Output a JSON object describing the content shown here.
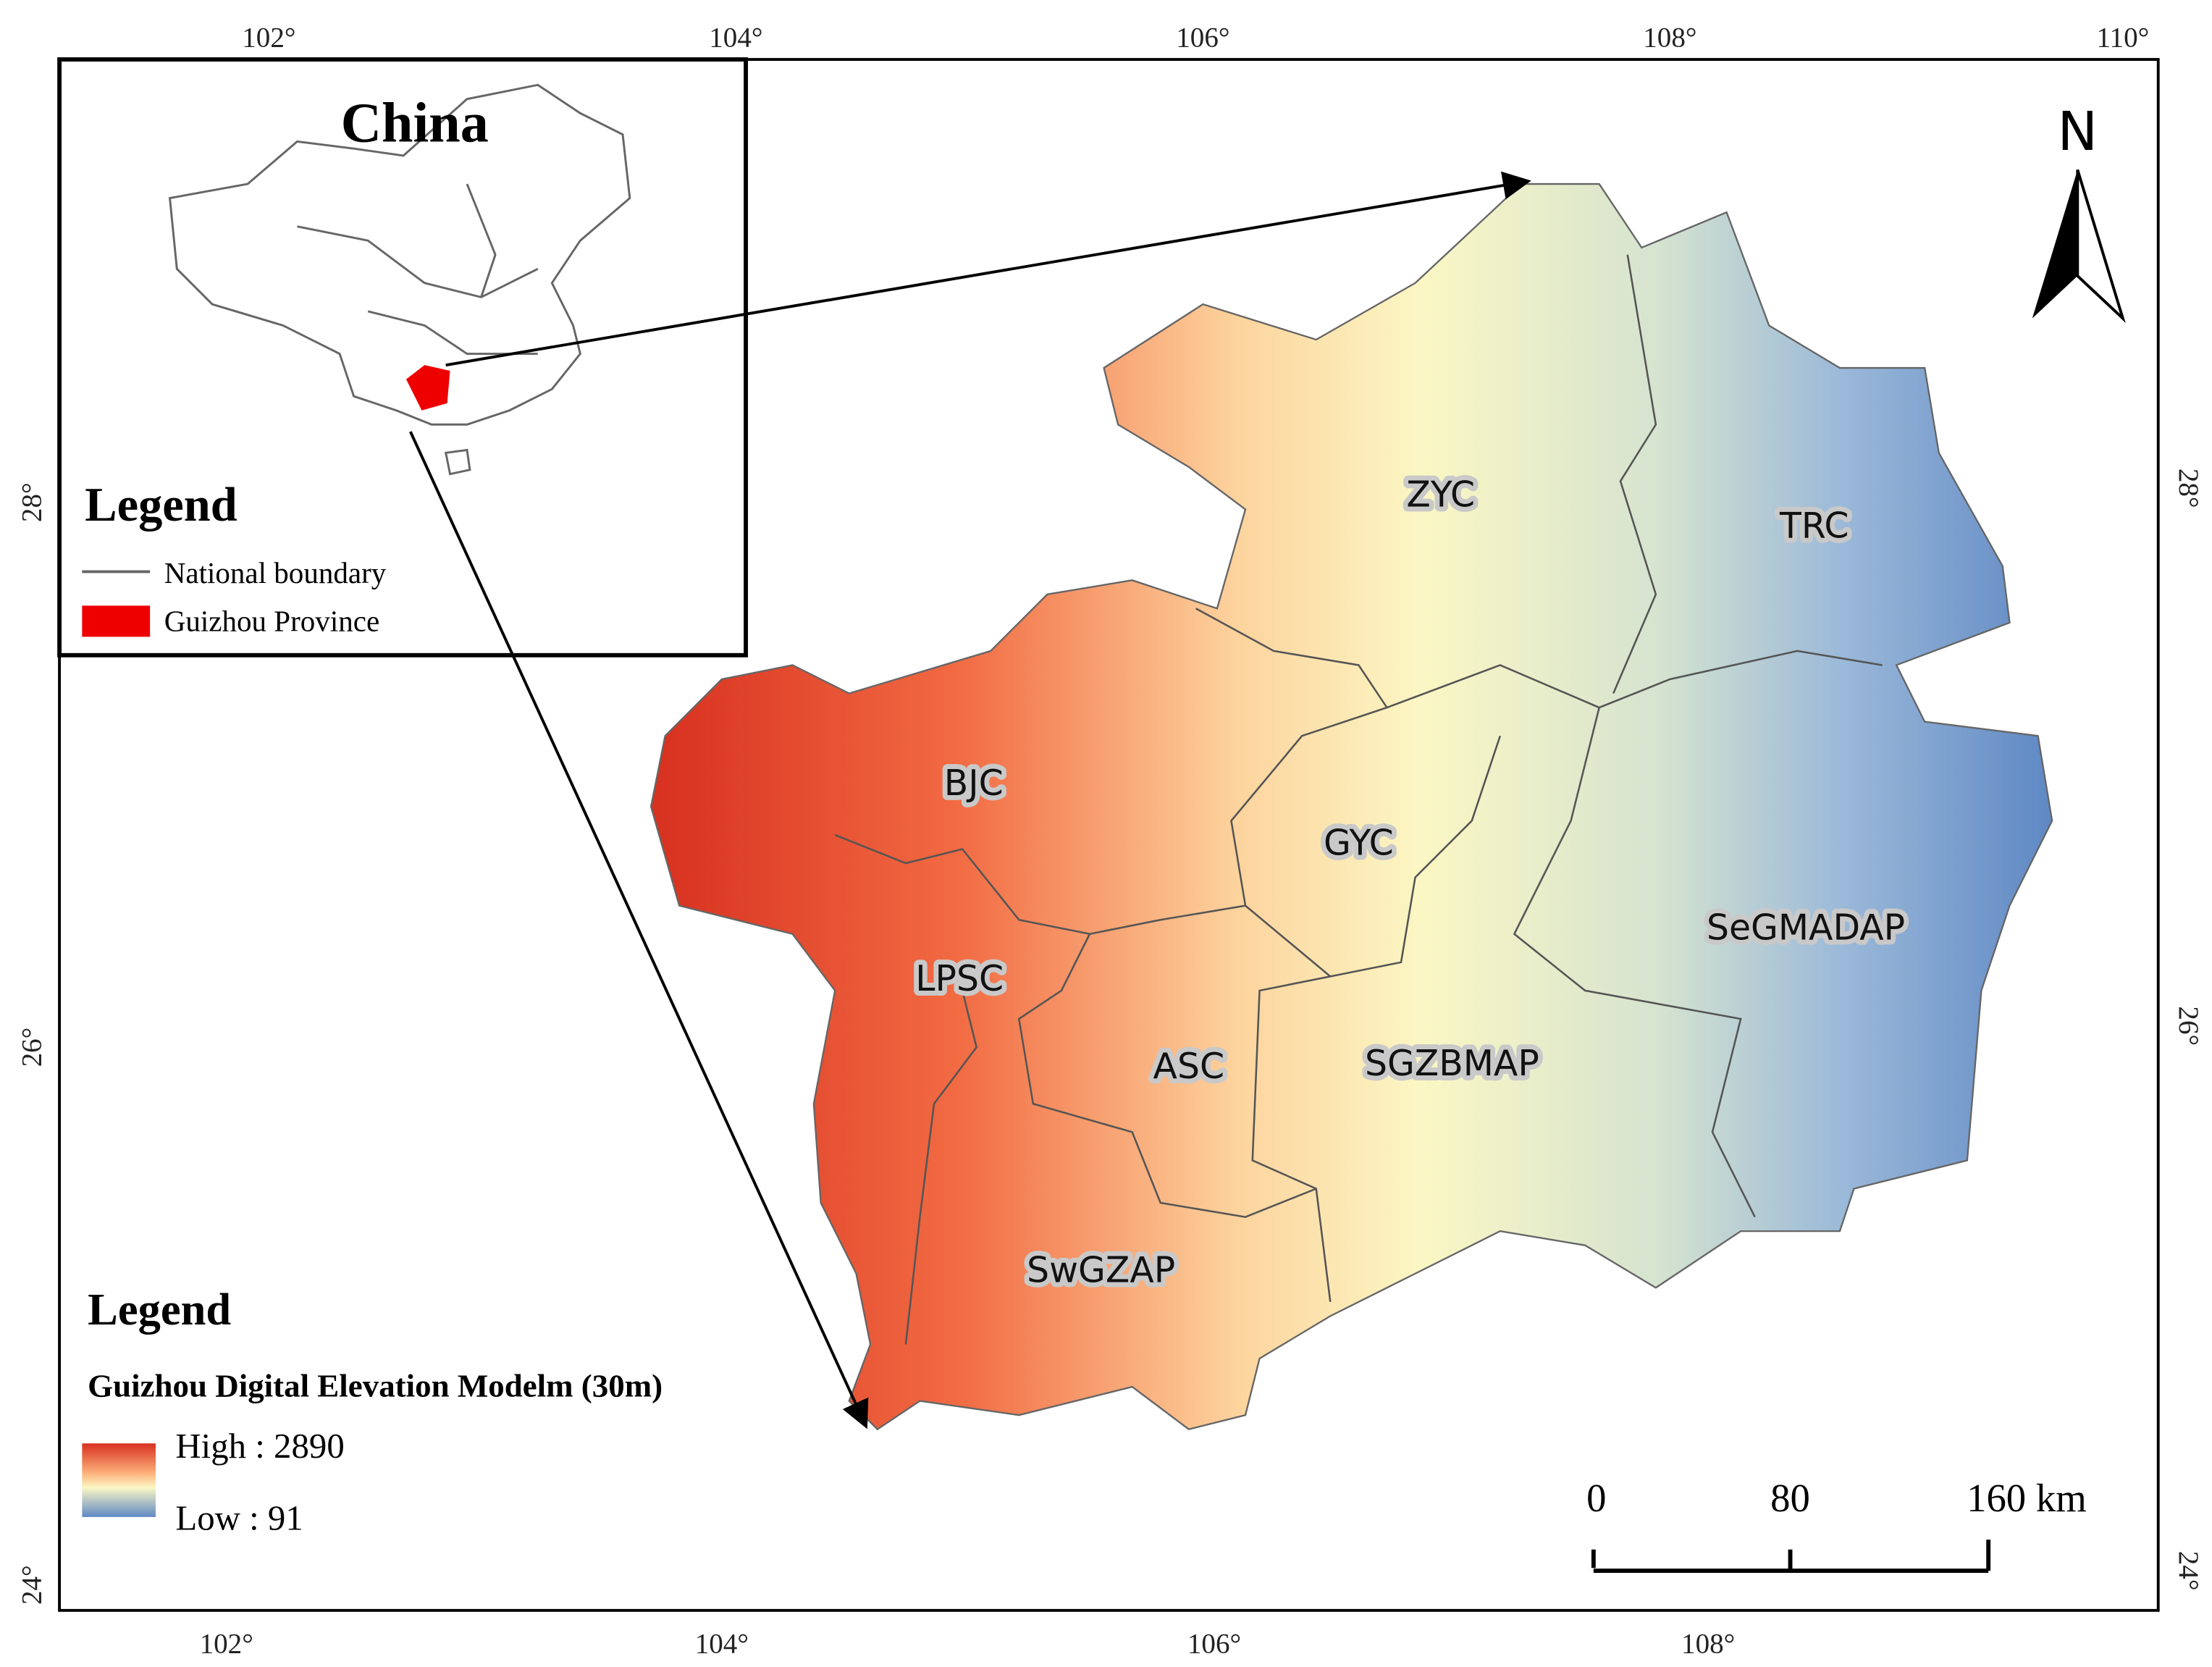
{
  "axes": {
    "top": [
      "102°",
      "104°",
      "106°",
      "108°",
      "110°"
    ],
    "bottom": [
      "102°",
      "104°",
      "106°",
      "108°"
    ],
    "left": [
      "28°",
      "26°",
      "24°"
    ],
    "right": [
      "28°",
      "26°",
      "24°"
    ]
  },
  "inset": {
    "title": "China",
    "legend": {
      "title": "Legend",
      "items": [
        "National boundary",
        "Guizhou Province"
      ]
    }
  },
  "regions": [
    "ZYC",
    "TRC",
    "BJC",
    "GYC",
    "SeGMADAP",
    "LPSC",
    "ASC",
    "SGZBMAP",
    "SwGZAP"
  ],
  "legend": {
    "title": "Legend",
    "subtitle": "Guizhou Digital Elevation Modelm (30m)",
    "high": "High : 2890",
    "low": "Low : 91"
  },
  "scale_bar": [
    "0",
    "80",
    "160 km"
  ],
  "north": "N"
}
